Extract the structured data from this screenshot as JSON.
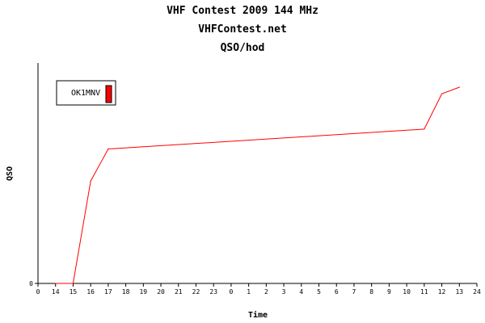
{
  "titles": {
    "line1": "VHF Contest 2009 144 MHz",
    "line2": "VHFContest.net",
    "line3": "QSO/hod"
  },
  "chart_data": {
    "type": "line",
    "xlabel": "Time",
    "ylabel": "QSO",
    "x_ticks": [
      "0",
      "14",
      "15",
      "16",
      "17",
      "18",
      "19",
      "20",
      "21",
      "22",
      "23",
      "0",
      "1",
      "2",
      "3",
      "4",
      "5",
      "6",
      "7",
      "8",
      "9",
      "10",
      "11",
      "12",
      "13",
      "24"
    ],
    "y_ticks": [
      "0"
    ],
    "legend": {
      "position": "top-left",
      "entries": [
        {
          "name": "OK1MNV",
          "color": "#ff0000"
        }
      ]
    },
    "grid": false,
    "series": [
      {
        "name": "OK1MNV",
        "color": "#ff0000",
        "x": [
          "14",
          "15",
          "16",
          "17",
          "11",
          "12",
          "13"
        ],
        "values": [
          0,
          0,
          93,
          122,
          140,
          172,
          178
        ]
      }
    ],
    "ylim": [
      0,
      200
    ]
  }
}
